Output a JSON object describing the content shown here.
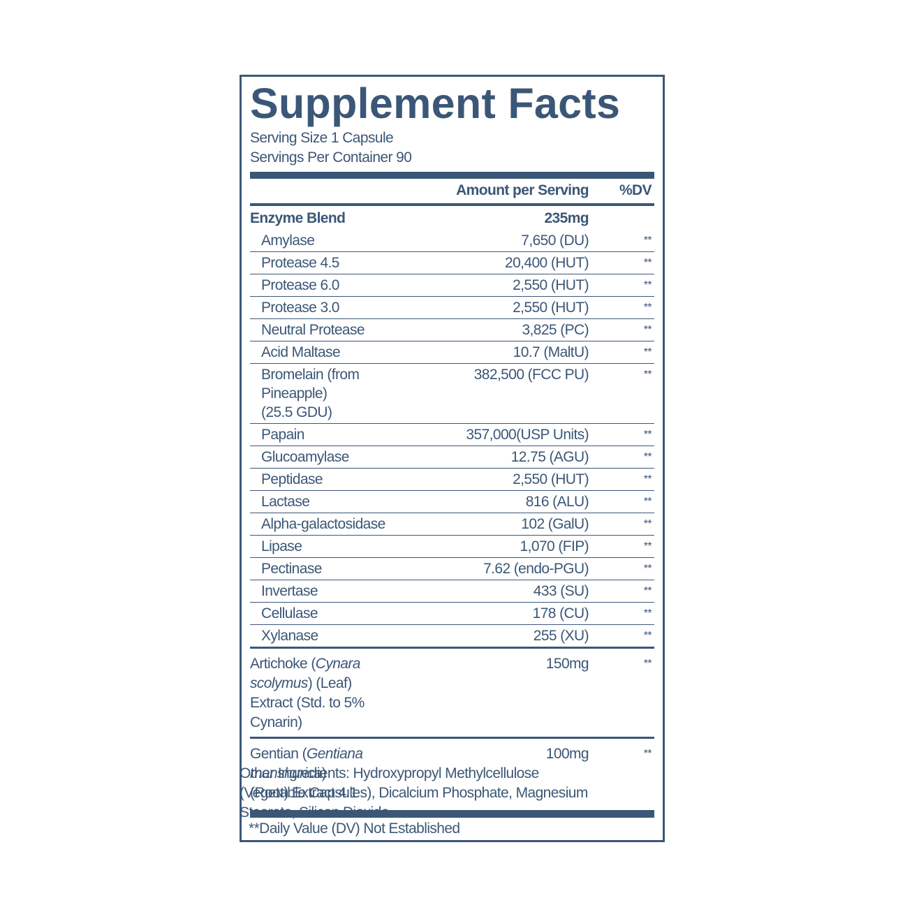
{
  "header": {
    "title": "Supplement Facts",
    "serving_size": "Serving Size 1 Capsule",
    "servings_per_container": "Servings Per Container 90"
  },
  "columns": {
    "amount": "Amount per Serving",
    "dv": "%DV"
  },
  "blend": {
    "name": "Enzyme Blend",
    "amount": "235mg",
    "rows": [
      {
        "name": [
          "Amylase"
        ],
        "amount": "7,650 (DU)",
        "dv": "**"
      },
      {
        "name": [
          "Protease 4.5"
        ],
        "amount": "20,400 (HUT)",
        "dv": "**"
      },
      {
        "name": [
          "Protease 6.0"
        ],
        "amount": "2,550 (HUT)",
        "dv": "**"
      },
      {
        "name": [
          "Protease 3.0"
        ],
        "amount": "2,550 (HUT)",
        "dv": "**"
      },
      {
        "name": [
          "Neutral Protease"
        ],
        "amount": "3,825 (PC)",
        "dv": "**"
      },
      {
        "name": [
          "Acid Maltase"
        ],
        "amount": "10.7 (MaltU)",
        "dv": "**"
      },
      {
        "name": [
          "Bromelain (from Pineapple)",
          "(25.5 GDU)"
        ],
        "amount": "382,500 (FCC PU)",
        "dv": "**"
      },
      {
        "name": [
          "Papain"
        ],
        "amount": "357,000(USP Units)",
        "dv": "**"
      },
      {
        "name": [
          "Glucoamylase"
        ],
        "amount": "12.75 (AGU)",
        "dv": "**"
      },
      {
        "name": [
          "Peptidase"
        ],
        "amount": "2,550 (HUT)",
        "dv": "**"
      },
      {
        "name": [
          "Lactase"
        ],
        "amount": "816 (ALU)",
        "dv": "**"
      },
      {
        "name": [
          "Alpha-galactosidase"
        ],
        "amount": "102 (GalU)",
        "dv": "**"
      },
      {
        "name": [
          "Lipase"
        ],
        "amount": "1,070 (FIP)",
        "dv": "**"
      },
      {
        "name": [
          "Pectinase"
        ],
        "amount": "7.62 (endo-PGU)",
        "dv": "**"
      },
      {
        "name": [
          "Invertase"
        ],
        "amount": "433 (SU)",
        "dv": "**"
      },
      {
        "name": [
          "Cellulase"
        ],
        "amount": "178 (CU)",
        "dv": "**"
      },
      {
        "name": [
          "Xylanase"
        ],
        "amount": "255 (XU)",
        "dv": "**"
      }
    ]
  },
  "other_rows": [
    {
      "lines": [
        [
          {
            "text": "Artichoke ("
          },
          {
            "text": "Cynara scolymus",
            "italic": true
          },
          {
            "text": ") (Leaf)"
          }
        ],
        [
          {
            "text": "Extract (Std. to 5% Cynarin)"
          }
        ]
      ],
      "amount": "150mg",
      "dv": "**"
    },
    {
      "lines": [
        [
          {
            "text": "Gentian ("
          },
          {
            "text": "Gentiana manshurica",
            "italic": true
          },
          {
            "text": ")"
          }
        ],
        [
          {
            "text": "(Root) Extract 4:1"
          }
        ]
      ],
      "amount": "100mg",
      "dv": "**"
    }
  ],
  "footnote": "**Daily Value (DV) Not Established",
  "other_ingredients": [
    "Other Ingredients: Hydroxypropyl Methylcellulose",
    "(Vegetable Capsules), Dicalcium Phosphate, Magnesium",
    "Stearate, Silicon Dioxide."
  ]
}
